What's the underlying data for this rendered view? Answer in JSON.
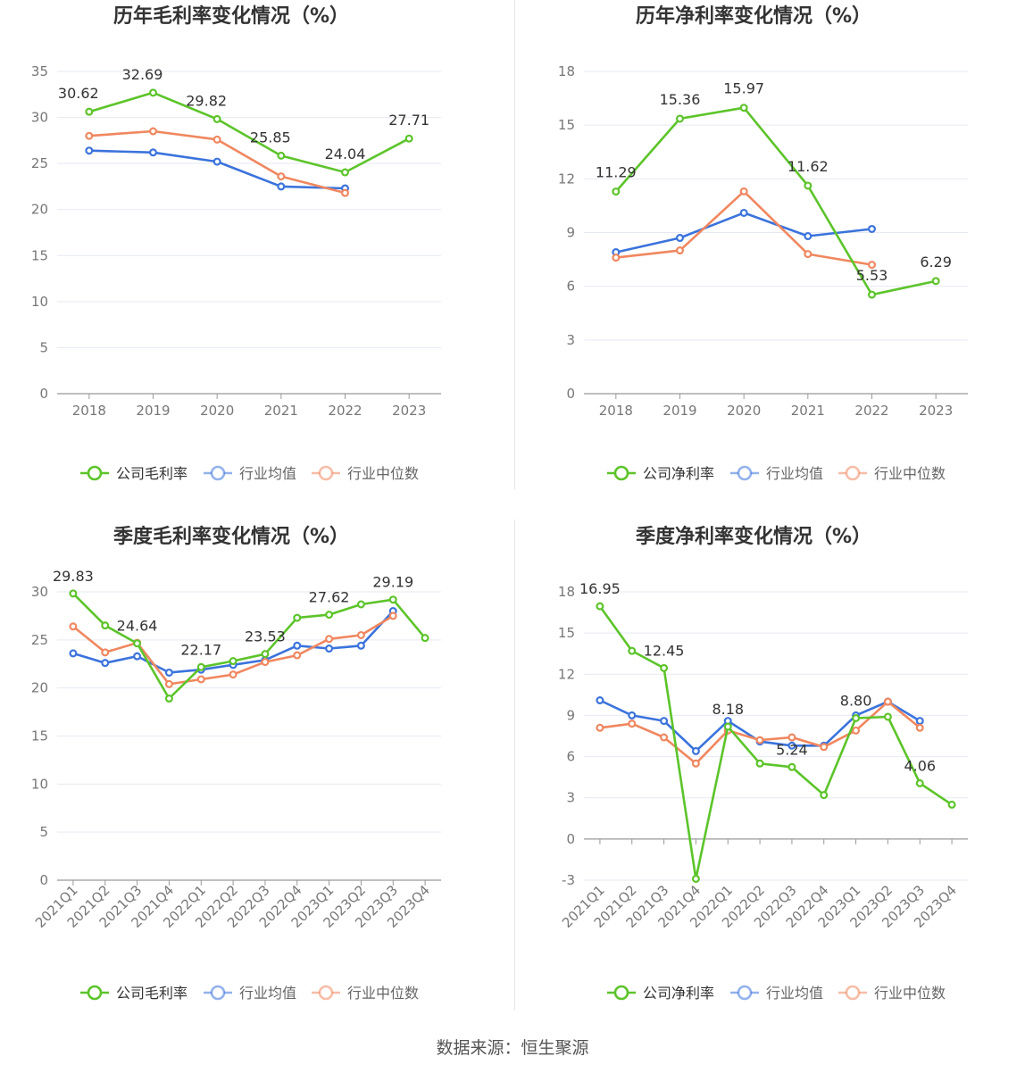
{
  "footer": {
    "source": "数据来源：恒生聚源"
  },
  "colors": {
    "company": "#5cc42a",
    "avg": "#3b73dc",
    "median": "#f0875f",
    "grid": "#e6e9f2",
    "axis": "#999999",
    "tick_text": "#777777"
  },
  "chart_data": [
    {
      "id": "annual-gross",
      "type": "line",
      "title": "历年毛利率变化情况（%）",
      "categories": [
        "2018",
        "2019",
        "2020",
        "2021",
        "2022",
        "2023"
      ],
      "ylim": [
        0,
        35
      ],
      "yticks": [
        0,
        5,
        10,
        15,
        20,
        25,
        30,
        35
      ],
      "grid": true,
      "legend_position": "bottom",
      "series": [
        {
          "key": "company",
          "name": "公司毛利率",
          "values": [
            30.62,
            32.69,
            29.82,
            25.85,
            24.04,
            27.71
          ],
          "labels": [
            "30.62",
            "32.69",
            "29.82",
            "25.85",
            "24.04",
            "27.71"
          ]
        },
        {
          "key": "avg",
          "name": "行业均值",
          "values": [
            26.4,
            26.2,
            25.2,
            22.5,
            22.3,
            null
          ]
        },
        {
          "key": "median",
          "name": "行业中位数",
          "values": [
            28.0,
            28.5,
            27.6,
            23.6,
            21.8,
            null
          ]
        }
      ]
    },
    {
      "id": "annual-net",
      "type": "line",
      "title": "历年净利率变化情况（%）",
      "categories": [
        "2018",
        "2019",
        "2020",
        "2021",
        "2022",
        "2023"
      ],
      "ylim": [
        0,
        18
      ],
      "yticks": [
        0,
        3,
        6,
        9,
        12,
        15,
        18
      ],
      "grid": true,
      "legend_position": "bottom",
      "series": [
        {
          "key": "company",
          "name": "公司净利率",
          "values": [
            11.29,
            15.36,
            15.97,
            11.62,
            5.53,
            6.29
          ],
          "labels": [
            "11.29",
            "15.36",
            "15.97",
            "11.62",
            "5.53",
            "6.29"
          ]
        },
        {
          "key": "avg",
          "name": "行业均值",
          "values": [
            7.9,
            8.7,
            10.1,
            8.8,
            9.2,
            null
          ]
        },
        {
          "key": "median",
          "name": "行业中位数",
          "values": [
            7.6,
            8.0,
            11.3,
            7.8,
            7.2,
            null
          ]
        }
      ]
    },
    {
      "id": "quarterly-gross",
      "type": "line",
      "title": "季度毛利率变化情况（%）",
      "categories": [
        "2021Q1",
        "2021Q2",
        "2021Q3",
        "2021Q4",
        "2022Q1",
        "2022Q2",
        "2022Q3",
        "2022Q4",
        "2023Q1",
        "2023Q2",
        "2023Q3",
        "2023Q4"
      ],
      "ylim": [
        0,
        30
      ],
      "yticks": [
        0,
        5,
        10,
        15,
        20,
        25,
        30
      ],
      "grid": true,
      "legend_position": "bottom",
      "series": [
        {
          "key": "company",
          "name": "公司毛利率",
          "values": [
            29.83,
            26.5,
            24.64,
            18.9,
            22.17,
            22.8,
            23.53,
            27.3,
            27.62,
            28.7,
            29.19,
            25.2
          ],
          "labels": [
            "29.83",
            null,
            "24.64",
            null,
            "22.17",
            null,
            "23.53",
            null,
            "27.62",
            null,
            "29.19",
            null
          ]
        },
        {
          "key": "avg",
          "name": "行业均值",
          "values": [
            23.6,
            22.6,
            23.3,
            21.6,
            21.9,
            22.4,
            22.9,
            24.4,
            24.1,
            24.4,
            28.0,
            null
          ]
        },
        {
          "key": "median",
          "name": "行业中位数",
          "values": [
            26.4,
            23.7,
            24.7,
            20.4,
            20.9,
            21.4,
            22.7,
            23.4,
            25.1,
            25.5,
            27.5,
            null
          ]
        }
      ]
    },
    {
      "id": "quarterly-net",
      "type": "line",
      "title": "季度净利率变化情况（%）",
      "categories": [
        "2021Q1",
        "2021Q2",
        "2021Q3",
        "2021Q4",
        "2022Q1",
        "2022Q2",
        "2022Q3",
        "2022Q4",
        "2023Q1",
        "2023Q2",
        "2023Q3",
        "2023Q4"
      ],
      "ylim": [
        -3,
        18
      ],
      "yticks": [
        -3,
        0,
        3,
        6,
        9,
        12,
        15,
        18
      ],
      "grid": true,
      "legend_position": "bottom",
      "series": [
        {
          "key": "company",
          "name": "公司净利率",
          "values": [
            16.95,
            13.7,
            12.45,
            -2.9,
            8.18,
            5.5,
            5.24,
            3.2,
            8.8,
            8.9,
            4.06,
            2.5
          ],
          "labels": [
            "16.95",
            null,
            "12.45",
            null,
            "8.18",
            null,
            "5.24",
            null,
            "8.80",
            null,
            "4.06",
            null
          ]
        },
        {
          "key": "avg",
          "name": "行业均值",
          "values": [
            10.1,
            9.0,
            8.6,
            6.4,
            8.6,
            7.1,
            6.8,
            6.8,
            9.0,
            10.0,
            8.6,
            null
          ]
        },
        {
          "key": "median",
          "name": "行业中位数",
          "values": [
            8.1,
            8.4,
            7.4,
            5.5,
            7.9,
            7.2,
            7.4,
            6.7,
            7.9,
            10.0,
            8.1,
            null
          ]
        }
      ]
    }
  ]
}
